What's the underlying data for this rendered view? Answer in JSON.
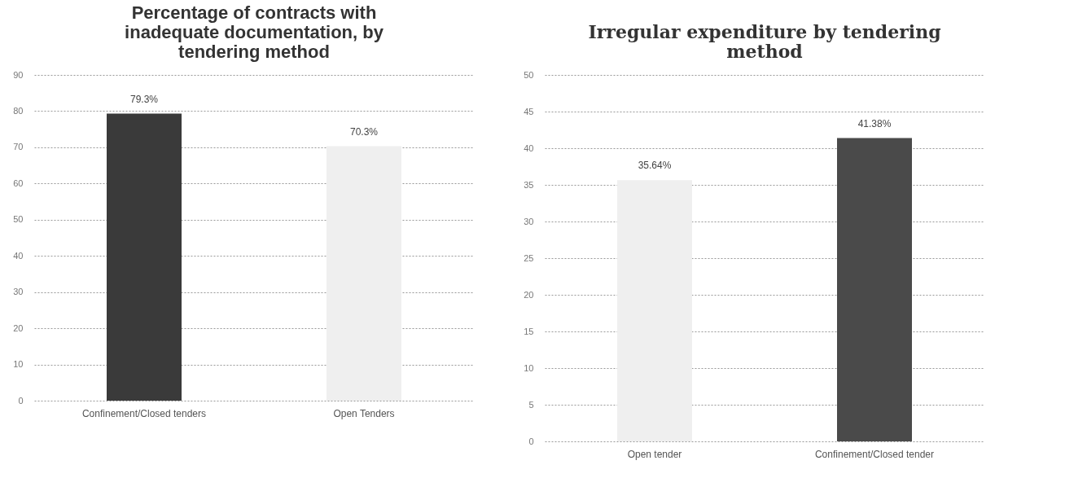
{
  "chart_data": [
    {
      "type": "bar",
      "title": "Percentage of contracts with inadequate documentation, by tendering method",
      "categories": [
        "Confinement/Closed tenders",
        "Open Tenders"
      ],
      "values": [
        79.3,
        70.3
      ],
      "value_labels": [
        "79.3%",
        "70.3%"
      ],
      "colors": [
        "#3a3a3a",
        "#efefef"
      ],
      "ylim": [
        0,
        90
      ],
      "yticks": [
        0,
        10,
        20,
        30,
        40,
        50,
        60,
        70,
        80,
        90
      ],
      "grid": "y"
    },
    {
      "type": "bar",
      "title": "Irregular expenditure by tendering method",
      "categories": [
        "Open tender",
        "Confinement/Closed tender"
      ],
      "values": [
        35.64,
        41.38
      ],
      "value_labels": [
        "35.64%",
        "41.38%"
      ],
      "colors": [
        "#efefef",
        "#4a4a4a"
      ],
      "ylim": [
        0,
        50
      ],
      "yticks": [
        0,
        5,
        10,
        15,
        20,
        25,
        30,
        35,
        40,
        45,
        50
      ],
      "grid": "y"
    }
  ]
}
